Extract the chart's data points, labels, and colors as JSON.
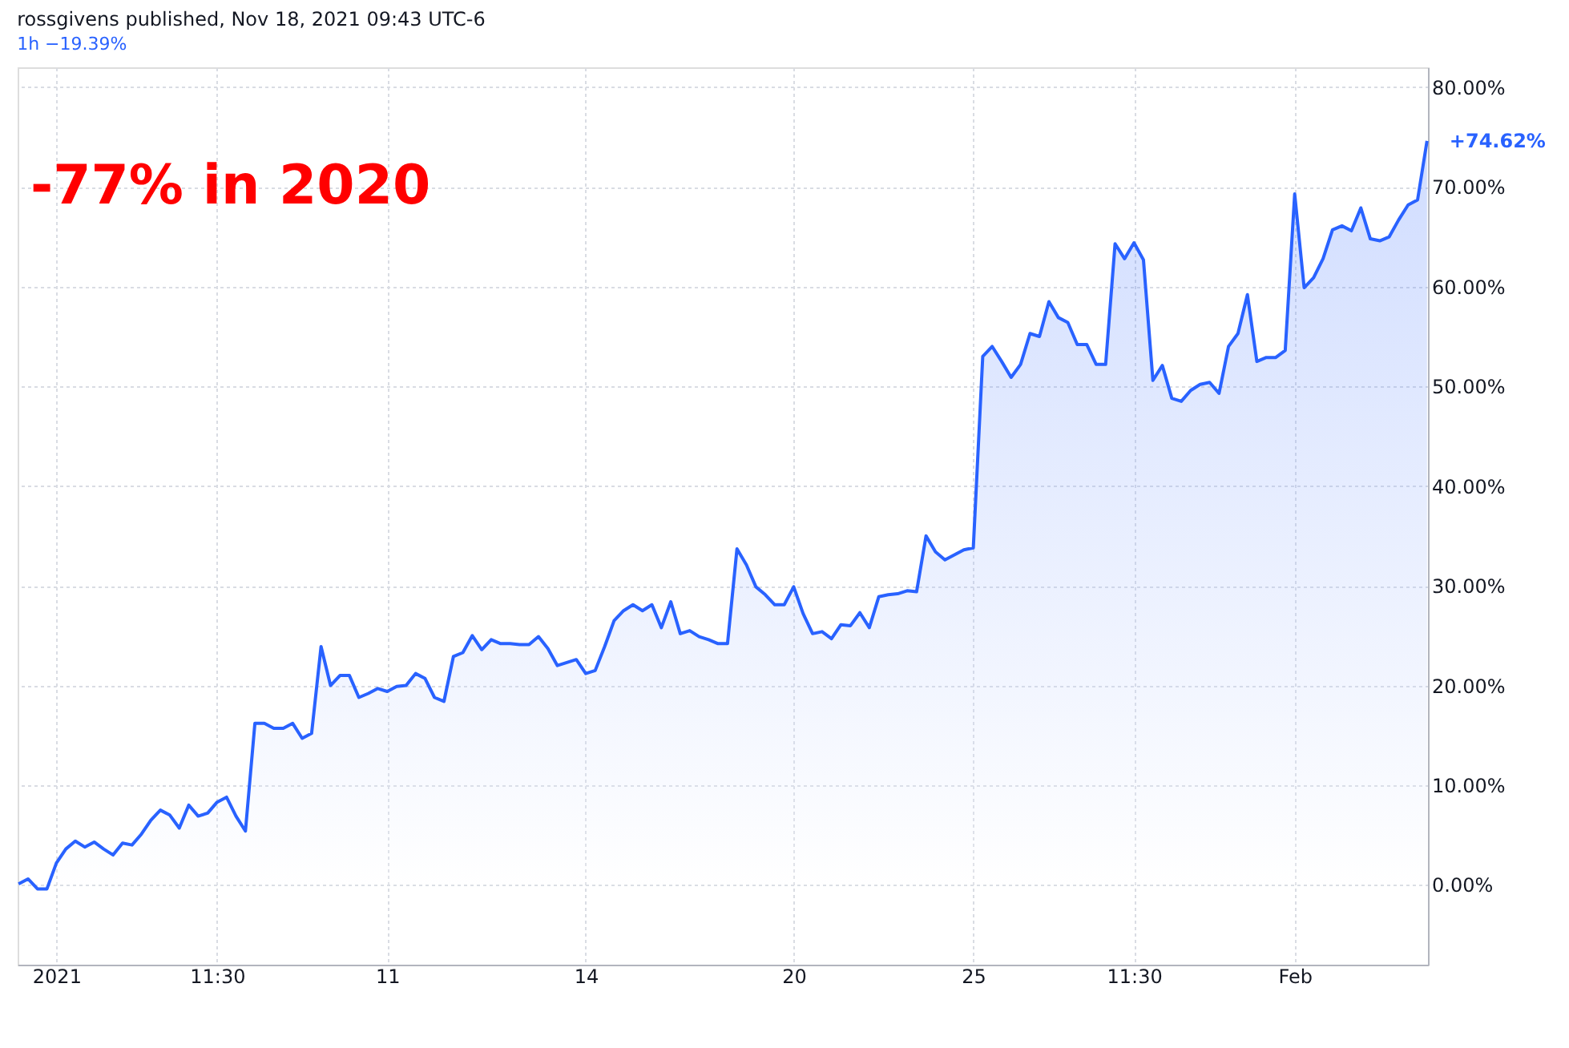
{
  "chart_data": {
    "type": "area",
    "title": "rossgivens published, Nov 18, 2021 09:43 UTC-6",
    "subtitle": "1h −19.39%",
    "annotations": [
      "-77% in 2020"
    ],
    "categories": [
      null,
      null,
      null,
      null,
      "2021",
      null,
      null,
      null,
      null,
      null,
      null,
      null,
      null,
      null,
      null,
      null,
      null,
      null,
      null,
      null,
      null,
      "11:30",
      null,
      null,
      null,
      null,
      null,
      null,
      null,
      null,
      null,
      null,
      null,
      null,
      null,
      null,
      null,
      null,
      null,
      "11",
      null,
      null,
      null,
      null,
      null,
      null,
      null,
      null,
      null,
      null,
      null,
      null,
      null,
      null,
      null,
      null,
      null,
      null,
      null,
      null,
      "14",
      null,
      null,
      null,
      null,
      null,
      null,
      null,
      null,
      null,
      null,
      null,
      null,
      null,
      null,
      null,
      null,
      null,
      null,
      null,
      null,
      null,
      "20",
      null,
      null,
      null,
      null,
      null,
      null,
      null,
      null,
      null,
      null,
      null,
      null,
      null,
      null,
      null,
      null,
      null,
      null,
      "25",
      null,
      null,
      null,
      null,
      null,
      null,
      null,
      null,
      null,
      null,
      null,
      null,
      null,
      null,
      null,
      null,
      "11:30",
      null,
      null,
      null,
      null,
      null,
      null,
      null,
      null,
      null,
      null,
      null,
      null,
      null,
      null,
      null,
      null,
      "Feb",
      null,
      null,
      null,
      null,
      null,
      null,
      null,
      null,
      null,
      null,
      null,
      null,
      null,
      null
    ],
    "series": [
      {
        "color": "#2962ff",
        "values": [
          0.1,
          0.6,
          -0.4,
          -0.4,
          2.2,
          3.6,
          4.4,
          3.8,
          4.3,
          3.6,
          3.0,
          4.2,
          4.0,
          5.1,
          6.5,
          7.5,
          7.0,
          5.7,
          8.0,
          6.9,
          7.2,
          8.3,
          8.8,
          6.9,
          5.4,
          16.2,
          16.2,
          15.7,
          15.7,
          16.2,
          14.7,
          15.2,
          23.9,
          20.0,
          21.0,
          21.0,
          18.8,
          19.2,
          19.7,
          19.4,
          19.9,
          20.0,
          21.2,
          20.7,
          18.8,
          18.4,
          22.9,
          23.3,
          25.0,
          23.6,
          24.6,
          24.2,
          24.2,
          24.1,
          24.1,
          24.9,
          23.7,
          22.0,
          22.3,
          22.6,
          21.2,
          21.5,
          23.9,
          26.5,
          27.5,
          28.1,
          27.5,
          28.1,
          25.8,
          28.4,
          25.2,
          25.5,
          24.9,
          24.6,
          24.2,
          24.2,
          33.7,
          32.1,
          29.9,
          29.1,
          28.1,
          28.1,
          29.9,
          27.2,
          25.2,
          25.4,
          24.7,
          26.1,
          26.0,
          27.3,
          25.8,
          28.9,
          29.1,
          29.2,
          29.5,
          29.4,
          35.0,
          33.4,
          32.6,
          33.1,
          33.6,
          33.8,
          53.0,
          54.0,
          52.5,
          50.9,
          52.2,
          55.3,
          55.0,
          58.5,
          56.9,
          56.4,
          54.2,
          54.2,
          52.2,
          52.2,
          64.3,
          62.8,
          64.4,
          62.7,
          50.6,
          52.1,
          48.8,
          48.5,
          49.6,
          50.2,
          50.4,
          49.3,
          54.0,
          55.3,
          59.2,
          52.5,
          52.9,
          52.9,
          53.6,
          69.3,
          59.9,
          60.9,
          62.8,
          65.7,
          66.1,
          65.6,
          67.9,
          64.8,
          64.6,
          65.0,
          66.7,
          68.2,
          68.7,
          74.62
        ],
        "value_labels": [
          null,
          null,
          null,
          null,
          null,
          null,
          null,
          null,
          null,
          null,
          null,
          null,
          null,
          null,
          null,
          null,
          null,
          null,
          null,
          null,
          null,
          null,
          null,
          null,
          null,
          null,
          null,
          null,
          null,
          null,
          null,
          null,
          null,
          null,
          null,
          null,
          null,
          null,
          null,
          null,
          null,
          null,
          null,
          null,
          null,
          null,
          null,
          null,
          null,
          null,
          null,
          null,
          null,
          null,
          null,
          null,
          null,
          null,
          null,
          null,
          null,
          null,
          null,
          null,
          null,
          null,
          null,
          null,
          null,
          null,
          null,
          null,
          null,
          null,
          null,
          null,
          null,
          null,
          null,
          null,
          null,
          null,
          null,
          null,
          null,
          null,
          null,
          null,
          null,
          null,
          null,
          null,
          null,
          null,
          null,
          null,
          null,
          null,
          null,
          null,
          null,
          null,
          null,
          null,
          null,
          null,
          null,
          null,
          null,
          null,
          null,
          null,
          null,
          null,
          null,
          null,
          null,
          null,
          null,
          null,
          null,
          null,
          null,
          null,
          null,
          null,
          null,
          null,
          null,
          null,
          null,
          null,
          null,
          null,
          null,
          null,
          null,
          null,
          null,
          null,
          null,
          null,
          null,
          null,
          null,
          null,
          null,
          null,
          null,
          "+74.62%"
        ]
      }
    ],
    "ylim": [
      -8,
      82
    ],
    "yticks": [
      {
        "value": 0,
        "label": "0.00%"
      },
      {
        "value": 10,
        "label": "10.00%"
      },
      {
        "value": 20,
        "label": "20.00%"
      },
      {
        "value": 30,
        "label": "30.00%"
      },
      {
        "value": 40,
        "label": "40.00%"
      },
      {
        "value": 50,
        "label": "50.00%"
      },
      {
        "value": 60,
        "label": "60.00%"
      },
      {
        "value": 70,
        "label": "70.00%"
      },
      {
        "value": 80,
        "label": "80.00%"
      }
    ],
    "grid": true,
    "line_style": "solid",
    "marker": "none"
  }
}
